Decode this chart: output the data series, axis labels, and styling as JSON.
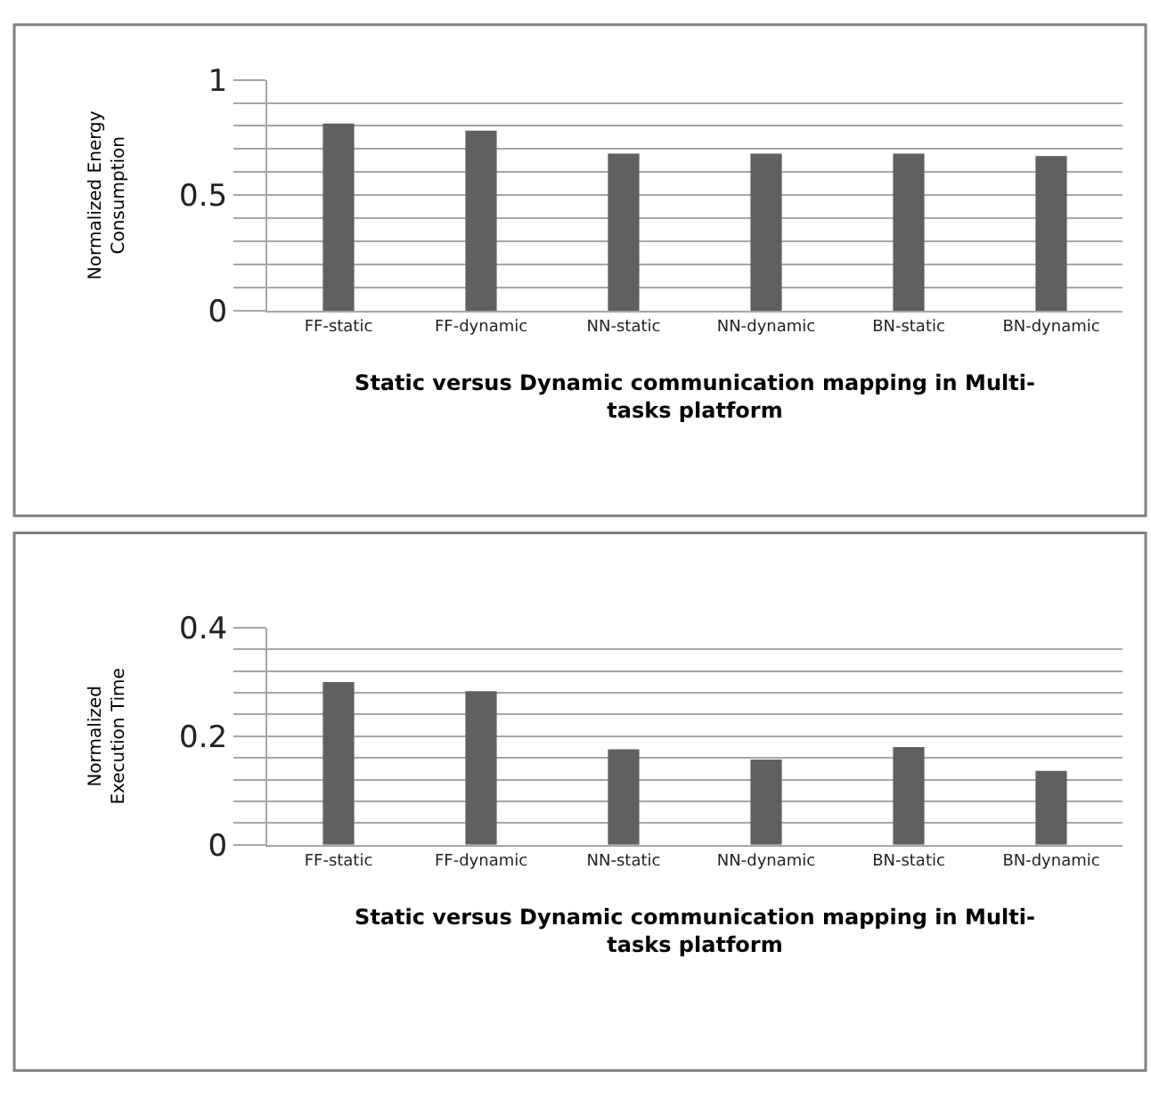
{
  "chart_data": [
    {
      "type": "bar",
      "ylabel": "Normalized Energy Consumption",
      "xlabel": "Static versus Dynamic communication mapping in Multi-tasks platform",
      "categories": [
        "FF-static",
        "FF-dynamic",
        "NN-static",
        "NN-dynamic",
        "BN-static",
        "BN-dynamic"
      ],
      "values": [
        0.81,
        0.78,
        0.68,
        0.68,
        0.68,
        0.67
      ],
      "color": "#606060",
      "ylim": [
        0,
        1
      ],
      "yticks": [
        0,
        {
          "value": 0.1,
          "label": null
        },
        {
          "value": 0.2,
          "label": null
        },
        {
          "value": 0.3,
          "label": null
        },
        {
          "value": 0.4,
          "label": null
        },
        0.5,
        {
          "value": 0.6,
          "label": null
        },
        {
          "value": 0.7,
          "label": null
        },
        {
          "value": 0.8,
          "label": null
        },
        {
          "value": 0.9,
          "label": null
        },
        1
      ],
      "grid": "y"
    },
    {
      "type": "bar",
      "ylabel": "Normalized Execution Time",
      "xlabel": "Static versus Dynamic communication mapping in Multi-tasks platform",
      "categories": [
        "FF-static",
        "FF-dynamic",
        "NN-static",
        "NN-dynamic",
        "BN-static",
        "BN-dynamic"
      ],
      "values": [
        0.3,
        0.283,
        0.176,
        0.157,
        0.18,
        0.136
      ],
      "color": "#606060",
      "ylim": [
        0,
        0.4
      ],
      "yticks": [
        0,
        {
          "value": 0.04,
          "label": null
        },
        {
          "value": 0.08,
          "label": null
        },
        {
          "value": 0.12,
          "label": null
        },
        {
          "value": 0.16,
          "label": null
        },
        0.2,
        {
          "value": 0.24,
          "label": null
        },
        {
          "value": 0.28,
          "label": null
        },
        {
          "value": 0.32,
          "label": null
        },
        {
          "value": 0.36,
          "label": null
        },
        0.4
      ],
      "grid": "y"
    }
  ]
}
